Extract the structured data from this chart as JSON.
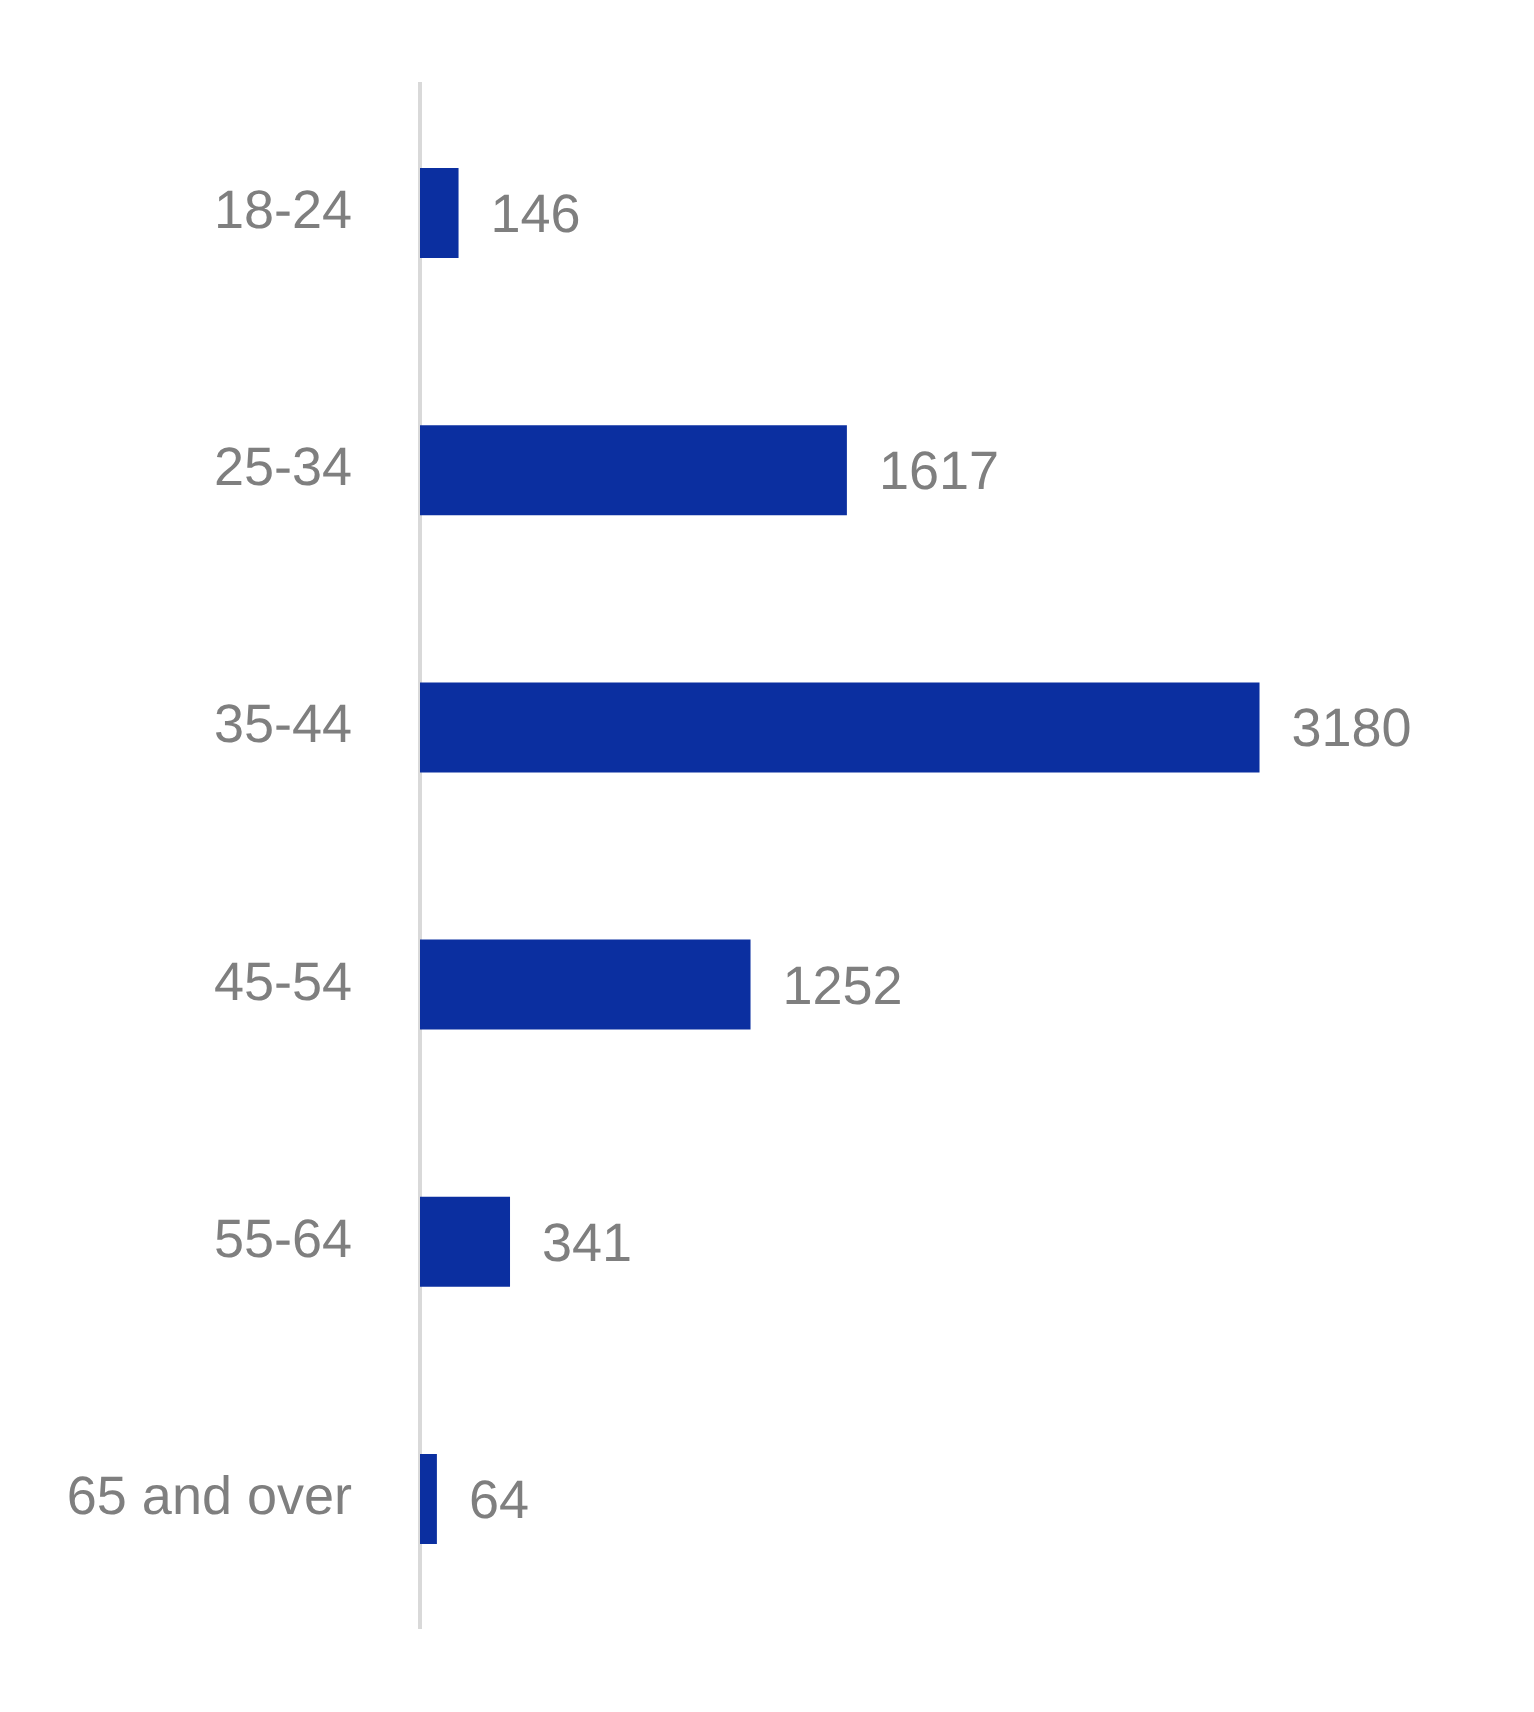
{
  "chart_data": {
    "type": "bar",
    "orientation": "horizontal",
    "categories": [
      "18-24",
      "25-34",
      "35-44",
      "45-54",
      "55-64",
      "65 and over"
    ],
    "values": [
      146,
      1617,
      3180,
      1252,
      341,
      64
    ],
    "color": "#0b2fa0",
    "data_labels": true
  }
}
